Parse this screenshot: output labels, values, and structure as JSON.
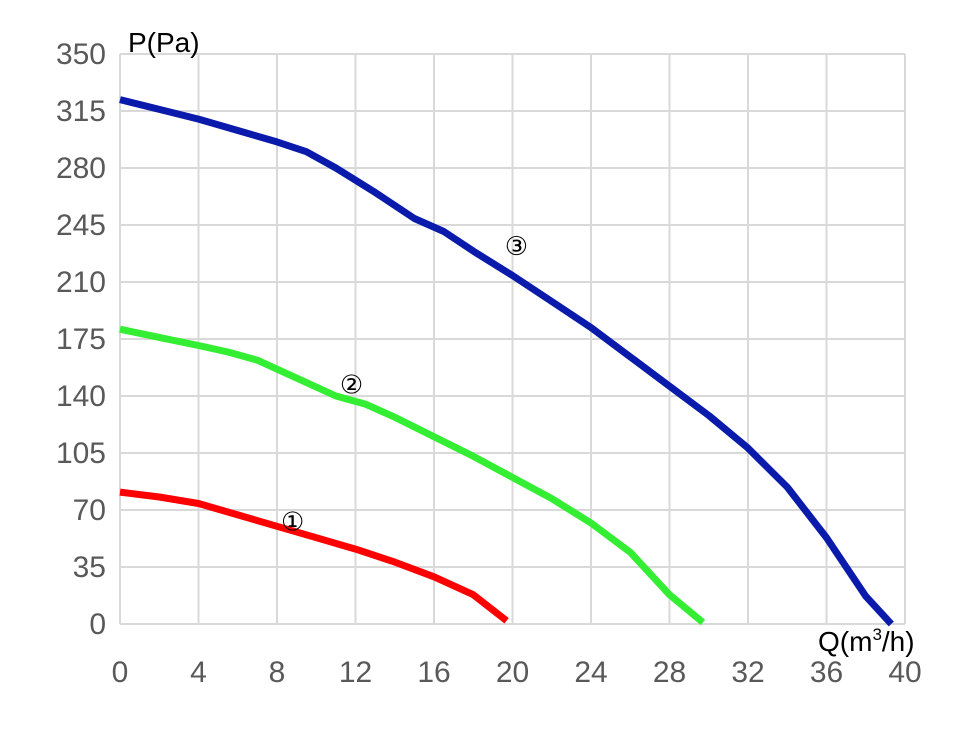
{
  "chart_data": {
    "type": "line",
    "xlabel": {
      "main": "Q(m",
      "sup": "3",
      "tail": "/h)"
    },
    "ylabel": "P(Pa)",
    "xlim": [
      0,
      40
    ],
    "ylim": [
      0,
      350
    ],
    "xticks": [
      0,
      4,
      8,
      12,
      16,
      20,
      24,
      28,
      32,
      36,
      40
    ],
    "yticks": [
      0,
      35,
      70,
      105,
      140,
      175,
      210,
      245,
      280,
      315,
      350
    ],
    "grid": true,
    "series": [
      {
        "label": "①",
        "color": "#ff0000",
        "label_at": [
          8.8,
          63
        ],
        "points": [
          [
            0,
            81
          ],
          [
            2,
            78
          ],
          [
            4,
            74
          ],
          [
            6,
            67
          ],
          [
            8,
            60
          ],
          [
            10,
            53
          ],
          [
            12,
            46
          ],
          [
            14,
            38
          ],
          [
            16,
            29
          ],
          [
            18,
            18
          ],
          [
            19.7,
            2
          ]
        ]
      },
      {
        "label": "②",
        "color": "#33ee33",
        "label_at": [
          11.8,
          147
        ],
        "points": [
          [
            0,
            181
          ],
          [
            2,
            176
          ],
          [
            4,
            171
          ],
          [
            5.5,
            167
          ],
          [
            7,
            162
          ],
          [
            9,
            151
          ],
          [
            11,
            140
          ],
          [
            12.5,
            135
          ],
          [
            14,
            127
          ],
          [
            16,
            115
          ],
          [
            18,
            103
          ],
          [
            20,
            90
          ],
          [
            22,
            77
          ],
          [
            24,
            62
          ],
          [
            26,
            44
          ],
          [
            28,
            18
          ],
          [
            29.7,
            1
          ]
        ]
      },
      {
        "label": "③",
        "color": "#0a1aaa",
        "label_at": [
          20.2,
          232
        ],
        "points": [
          [
            0,
            322
          ],
          [
            2,
            316
          ],
          [
            4,
            310
          ],
          [
            6,
            303
          ],
          [
            8,
            296
          ],
          [
            9.5,
            290
          ],
          [
            11,
            280
          ],
          [
            13,
            265
          ],
          [
            15,
            249
          ],
          [
            16.5,
            241
          ],
          [
            18,
            229
          ],
          [
            20,
            214
          ],
          [
            22,
            198
          ],
          [
            24,
            182
          ],
          [
            26,
            164
          ],
          [
            28,
            146
          ],
          [
            30,
            128
          ],
          [
            32,
            108
          ],
          [
            34,
            84
          ],
          [
            36,
            53
          ],
          [
            38,
            17
          ],
          [
            39.3,
            0
          ]
        ]
      }
    ]
  }
}
